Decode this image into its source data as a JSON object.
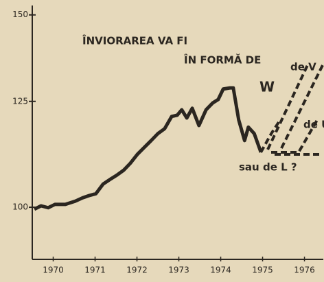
{
  "chart_data": {
    "type": "line",
    "log_scale": true,
    "color": "#2b2620",
    "xlim": [
      1970,
      1976.95
    ],
    "ylim": [
      89.6,
      153
    ],
    "yticks": [
      100,
      125,
      150
    ],
    "xticks": [
      {
        "value": 1970.5,
        "label": "1970"
      },
      {
        "value": 1971.5,
        "label": "1971"
      },
      {
        "value": 1972.5,
        "label": "1972"
      },
      {
        "value": 1973.5,
        "label": "1973"
      },
      {
        "value": 1974.5,
        "label": "1974"
      },
      {
        "value": 1975.5,
        "label": "1975"
      },
      {
        "value": 1976.5,
        "label": "1976"
      }
    ],
    "x": [
      1970.05,
      1970.21,
      1970.38,
      1970.54,
      1970.79,
      1971.03,
      1971.2,
      1971.36,
      1971.52,
      1971.69,
      1971.85,
      1972.02,
      1972.18,
      1972.34,
      1972.51,
      1972.67,
      1972.84,
      1973.0,
      1973.16,
      1973.33,
      1973.46,
      1973.57,
      1973.69,
      1973.82,
      1973.98,
      1974.15,
      1974.31,
      1974.44,
      1974.56,
      1974.72,
      1974.8,
      1974.93,
      1975.07,
      1975.16,
      1975.3,
      1975.46
    ],
    "values": [
      99.6,
      100.3,
      99.9,
      100.6,
      100.6,
      101.3,
      102.0,
      102.5,
      102.9,
      105.0,
      106.0,
      107.0,
      108.1,
      109.7,
      111.8,
      113.4,
      115.1,
      116.8,
      118.0,
      121.1,
      121.4,
      122.8,
      120.7,
      123.2,
      118.8,
      122.8,
      124.6,
      125.5,
      128.3,
      128.6,
      128.6,
      120.2,
      115.1,
      118.4,
      116.8,
      112.3
    ],
    "annotations": [
      "ÎNVIORAREA VA FI",
      "ÎN FORMĂ DE",
      "W",
      "de V",
      "de U",
      "sau de L ?"
    ]
  }
}
